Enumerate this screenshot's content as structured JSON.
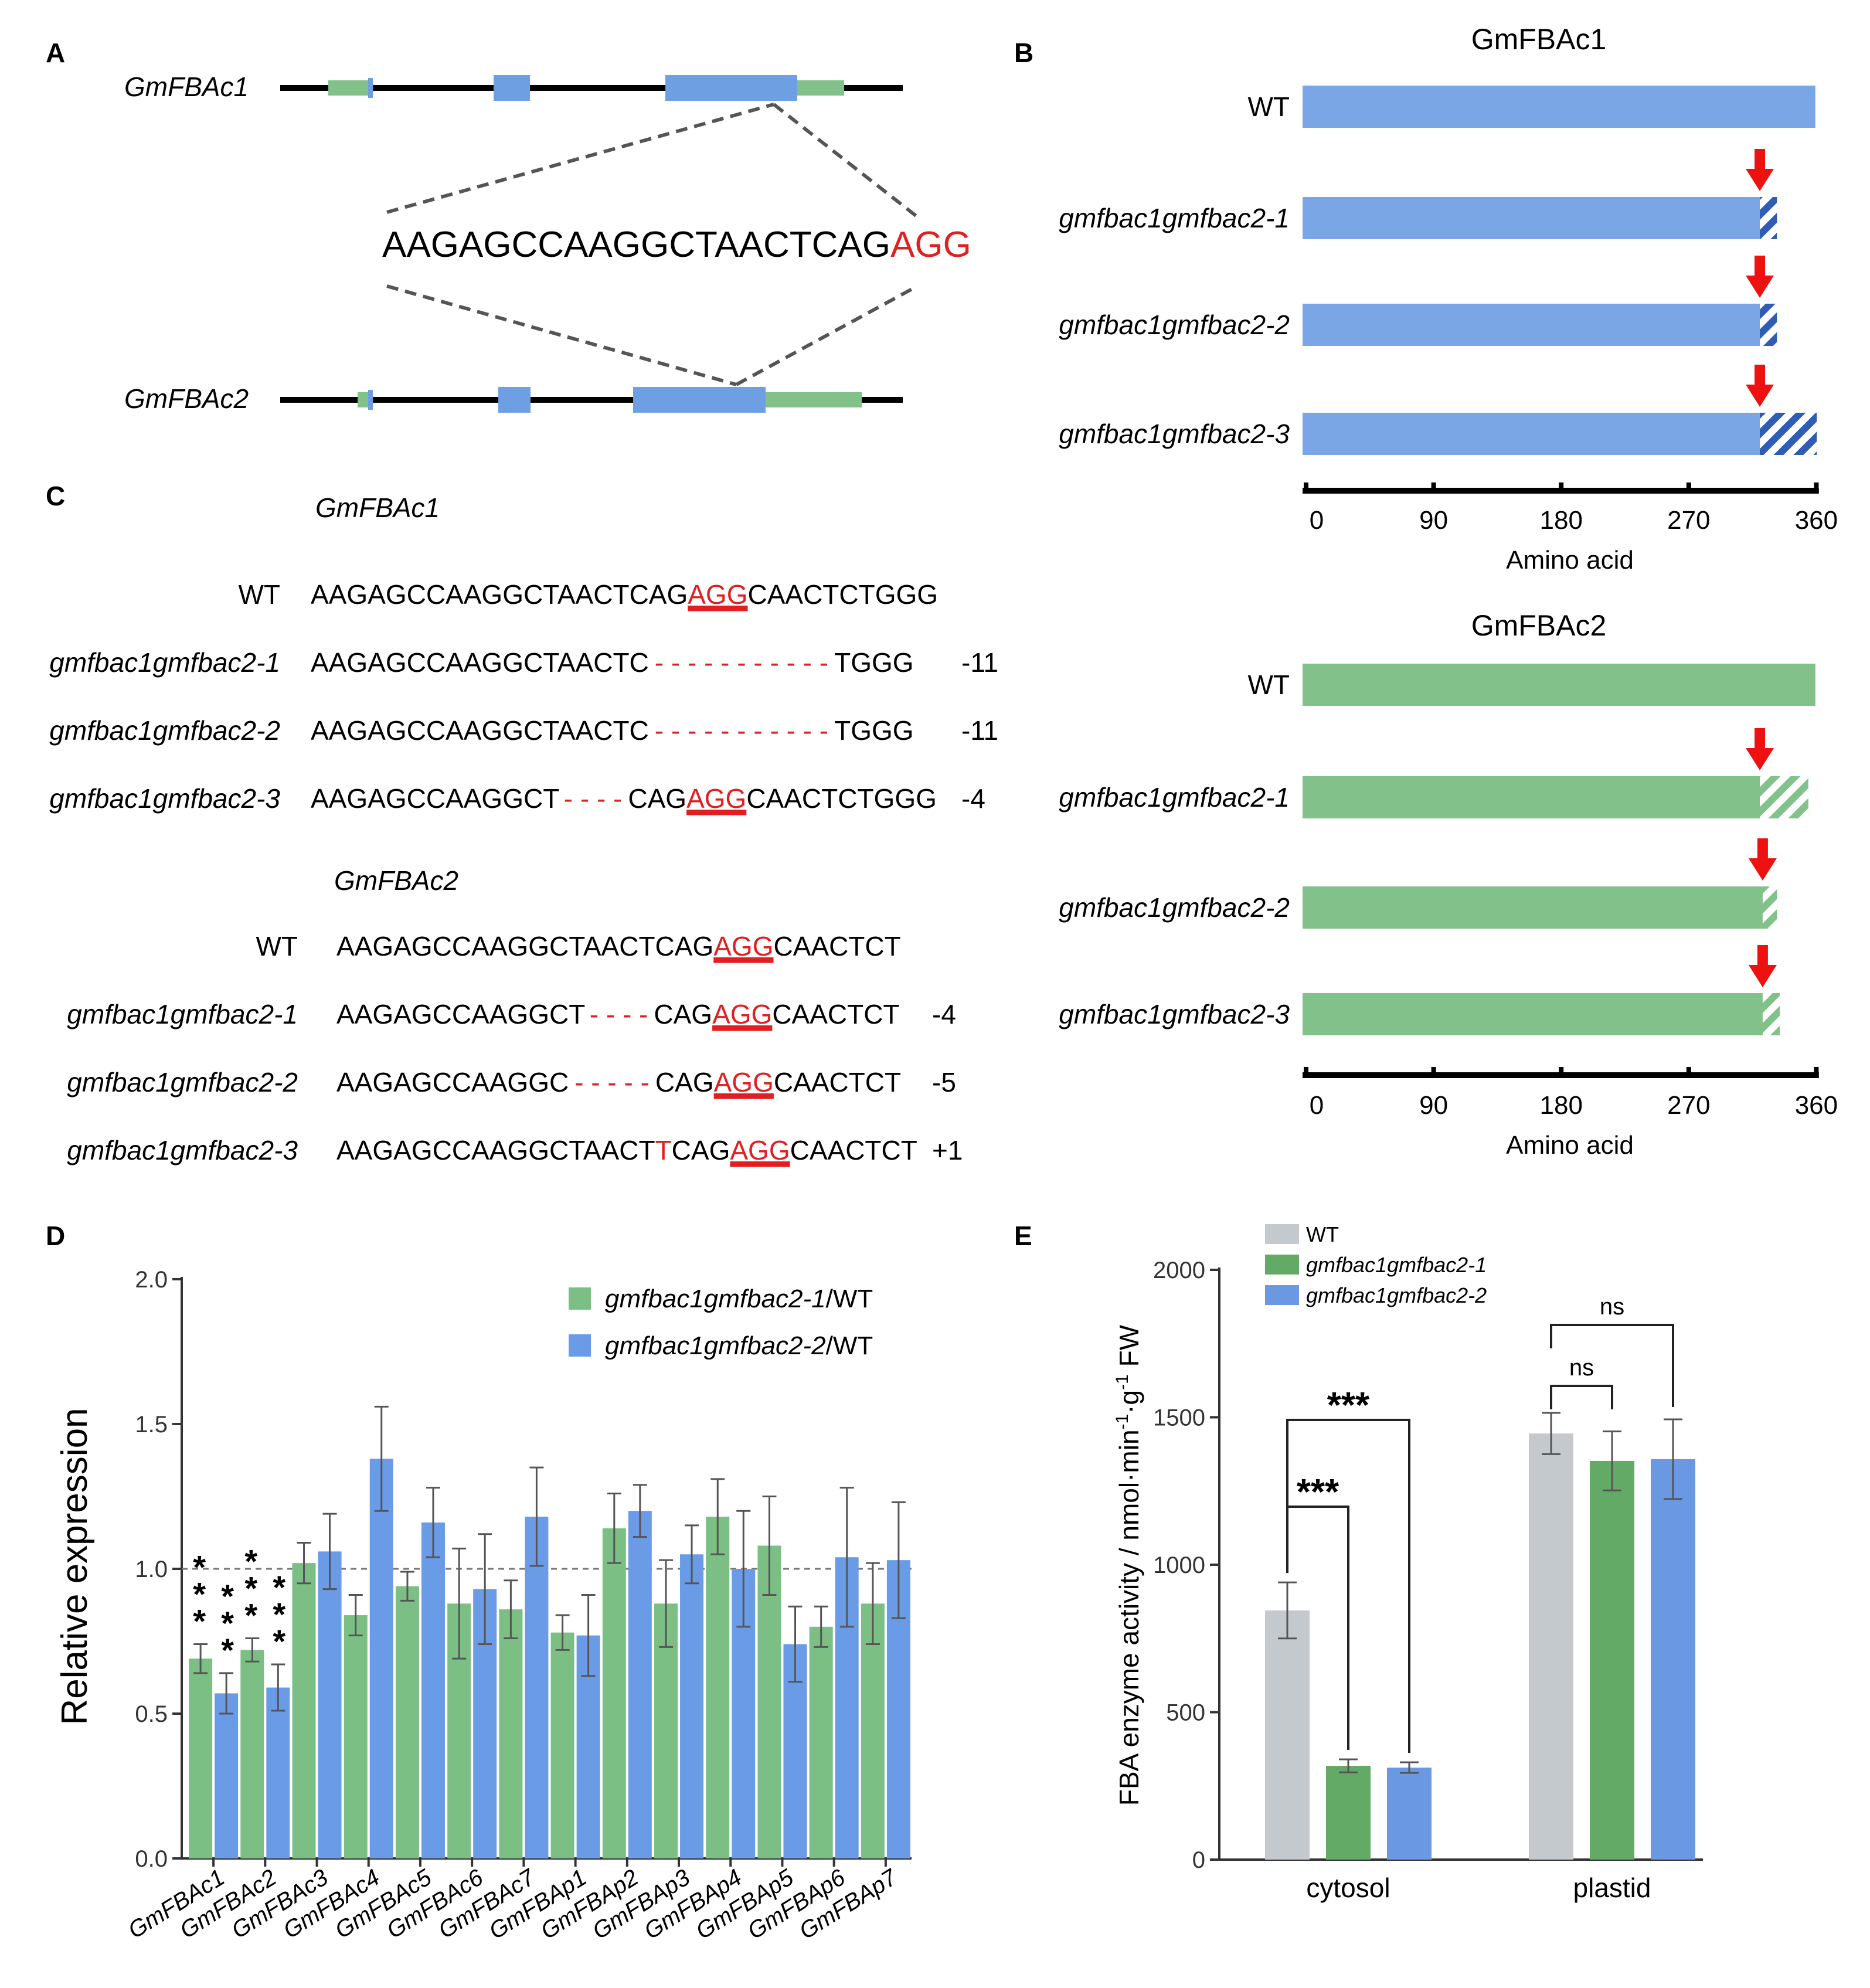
{
  "panel_a": {
    "label": "A",
    "genes": [
      "GmFBAc1",
      "GmFBAc2"
    ],
    "target_seq": "AAGAGCCAAGGCTAACTCAG",
    "pam": "AGG"
  },
  "panel_b": {
    "label": "B",
    "axis_title": "Amino acid",
    "ticks": [
      "0",
      "90",
      "180",
      "270",
      "360"
    ],
    "colors": {
      "gmfbac1": "#7aa6e6",
      "gmfbac2": "#82c18a",
      "arrow": "#ee1111"
    },
    "proteins": [
      {
        "title": "GmFBAc1",
        "rows": [
          {
            "label": "WT",
            "length": 360,
            "altered": 0
          },
          {
            "label": "gmfbac1gmfbac2-1",
            "length": 333,
            "altered": 12
          },
          {
            "label": "gmfbac1gmfbac2-2",
            "length": 333,
            "altered": 12
          },
          {
            "label": "gmfbac1gmfbac2-3",
            "length": 361,
            "altered": 40
          }
        ]
      },
      {
        "title": "GmFBAc2",
        "rows": [
          {
            "label": "WT",
            "length": 360,
            "altered": 0
          },
          {
            "label": "gmfbac1gmfbac2-1",
            "length": 355,
            "altered": 34
          },
          {
            "label": "gmfbac1gmfbac2-2",
            "length": 333,
            "altered": 10
          },
          {
            "label": "gmfbac1gmfbac2-3",
            "length": 335,
            "altered": 12
          }
        ]
      }
    ]
  },
  "panel_c": {
    "label": "C",
    "blocks": [
      {
        "gene": "GmFBAc1",
        "rows": [
          {
            "label": "WT",
            "pre": "AAGAGCCAAGGCTAACTCAG",
            "ins": "",
            "dash": "",
            "pam": "AGG",
            "post": "CAACTCTGGG",
            "indel": ""
          },
          {
            "label": "gmfbac1gmfbac2-1",
            "pre": "AAGAGCCAAGGCTAACTC",
            "ins": "",
            "dash": "- - - - - - - - - - -",
            "pam": "",
            "post": "TGGG",
            "indel": "-11"
          },
          {
            "label": "gmfbac1gmfbac2-2",
            "pre": "AAGAGCCAAGGCTAACTC",
            "ins": "",
            "dash": "- - - - - - - - - - -",
            "pam": "",
            "post": "TGGG",
            "indel": "-11"
          },
          {
            "label": "gmfbac1gmfbac2-3",
            "pre": "AAGAGCCAAGGCT",
            "ins": "",
            "dash": "- - - -",
            "mid": "CAG",
            "pam": "AGG",
            "post": "CAACTCTGGG",
            "indel": "-4"
          }
        ]
      },
      {
        "gene": "GmFBAc2",
        "rows": [
          {
            "label": "WT",
            "pre": "AAGAGCCAAGGCTAACTCAG",
            "ins": "",
            "dash": "",
            "pam": "AGG",
            "post": "CAACTCT",
            "indel": ""
          },
          {
            "label": "gmfbac1gmfbac2-1",
            "pre": "AAGAGCCAAGGCT",
            "ins": "",
            "dash": "- - - -",
            "mid": "CAG",
            "pam": "AGG",
            "post": "CAACTCT",
            "indel": "-4"
          },
          {
            "label": "gmfbac1gmfbac2-2",
            "pre": "AAGAGCCAAGGC",
            "ins": "",
            "dash": "- - - - -",
            "mid": "CAG",
            "pam": "AGG",
            "post": "CAACTCT",
            "indel": "-5"
          },
          {
            "label": "gmfbac1gmfbac2-3",
            "pre": "AAGAGCCAAGGCTAACT",
            "ins": "T",
            "dash": "",
            "mid": "CAG",
            "pam": "AGG",
            "post": "CAACTCT",
            "indel": "+1"
          }
        ]
      }
    ]
  },
  "chart_data": [
    {
      "panel": "D",
      "type": "bar",
      "title": "",
      "xlabel": "",
      "ylabel": "Relative expression",
      "ylim": [
        0.0,
        2.0
      ],
      "yticks": [
        "0.0",
        "0.5",
        "1.0",
        "1.5",
        "2.0"
      ],
      "reference_line": 1.0,
      "categories": [
        "GmFBAc1",
        "GmFBAc2",
        "GmFBAc3",
        "GmFBAc4",
        "GmFBAc5",
        "GmFBAc6",
        "GmFBAc7",
        "GmFBAp1",
        "GmFBAp2",
        "GmFBAp3",
        "GmFBAp4",
        "GmFBAp5",
        "GmFBAp6",
        "GmFBAp7"
      ],
      "series": [
        {
          "name_italic": "gmfbac1gmfbac2-1",
          "name_suffix": "/WT",
          "color": "#7cbf84",
          "values": [
            0.69,
            0.72,
            1.02,
            0.84,
            0.94,
            0.88,
            0.86,
            0.78,
            1.14,
            0.88,
            1.18,
            1.08,
            0.8,
            0.88
          ],
          "errors": [
            0.05,
            0.04,
            0.07,
            0.07,
            0.05,
            0.19,
            0.1,
            0.06,
            0.12,
            0.15,
            0.13,
            0.17,
            0.07,
            0.14
          ]
        },
        {
          "name_italic": "gmfbac1gmfbac2-2",
          "name_suffix": "/WT",
          "color": "#6a9be6",
          "values": [
            0.57,
            0.59,
            1.06,
            1.38,
            1.16,
            0.93,
            1.18,
            0.77,
            1.2,
            1.05,
            1.0,
            0.74,
            1.04,
            1.03
          ],
          "errors": [
            0.07,
            0.08,
            0.13,
            0.18,
            0.12,
            0.19,
            0.17,
            0.14,
            0.09,
            0.1,
            0.2,
            0.13,
            0.24,
            0.2
          ]
        }
      ],
      "significance": [
        {
          "category": "GmFBAc1",
          "text": "***"
        },
        {
          "category": "GmFBAc2",
          "text": "***"
        }
      ]
    },
    {
      "panel": "E",
      "type": "bar",
      "title": "",
      "xlabel": "",
      "ylabel": "FBA enzyme activity / nmol·min-1·g-1 FW",
      "ylabel_parts": {
        "main": "FBA enzyme activity / nmol·min",
        "sup1": "-1",
        "mid": "·g",
        "sup2": "-1",
        "end": " FW"
      },
      "ylim": [
        0,
        2000
      ],
      "yticks": [
        "0",
        "500",
        "1000",
        "1500",
        "2000"
      ],
      "categories": [
        "cytosol",
        "plastid"
      ],
      "series": [
        {
          "name": "WT",
          "italic": false,
          "color": "#c3c9cd",
          "values": [
            845,
            1445
          ],
          "errors": [
            95,
            70
          ]
        },
        {
          "name": "gmfbac1gmfbac2-1",
          "italic": true,
          "color": "#62aa66",
          "values": [
            318,
            1352
          ],
          "errors": [
            22,
            100
          ]
        },
        {
          "name": "gmfbac1gmfbac2-2",
          "italic": true,
          "color": "#6b98e2",
          "values": [
            312,
            1358
          ],
          "errors": [
            18,
            135
          ]
        }
      ],
      "significance": [
        {
          "category": "cytosol",
          "between": [
            "WT",
            "gmfbac1gmfbac2-1"
          ],
          "text": "***"
        },
        {
          "category": "cytosol",
          "between": [
            "WT",
            "gmfbac1gmfbac2-2"
          ],
          "text": "***"
        },
        {
          "category": "plastid",
          "between": [
            "WT",
            "gmfbac1gmfbac2-1"
          ],
          "text": "ns"
        },
        {
          "category": "plastid",
          "between": [
            "WT",
            "gmfbac1gmfbac2-2"
          ],
          "text": "ns"
        }
      ]
    }
  ],
  "panel_d": {
    "label": "D"
  },
  "panel_e": {
    "label": "E"
  }
}
